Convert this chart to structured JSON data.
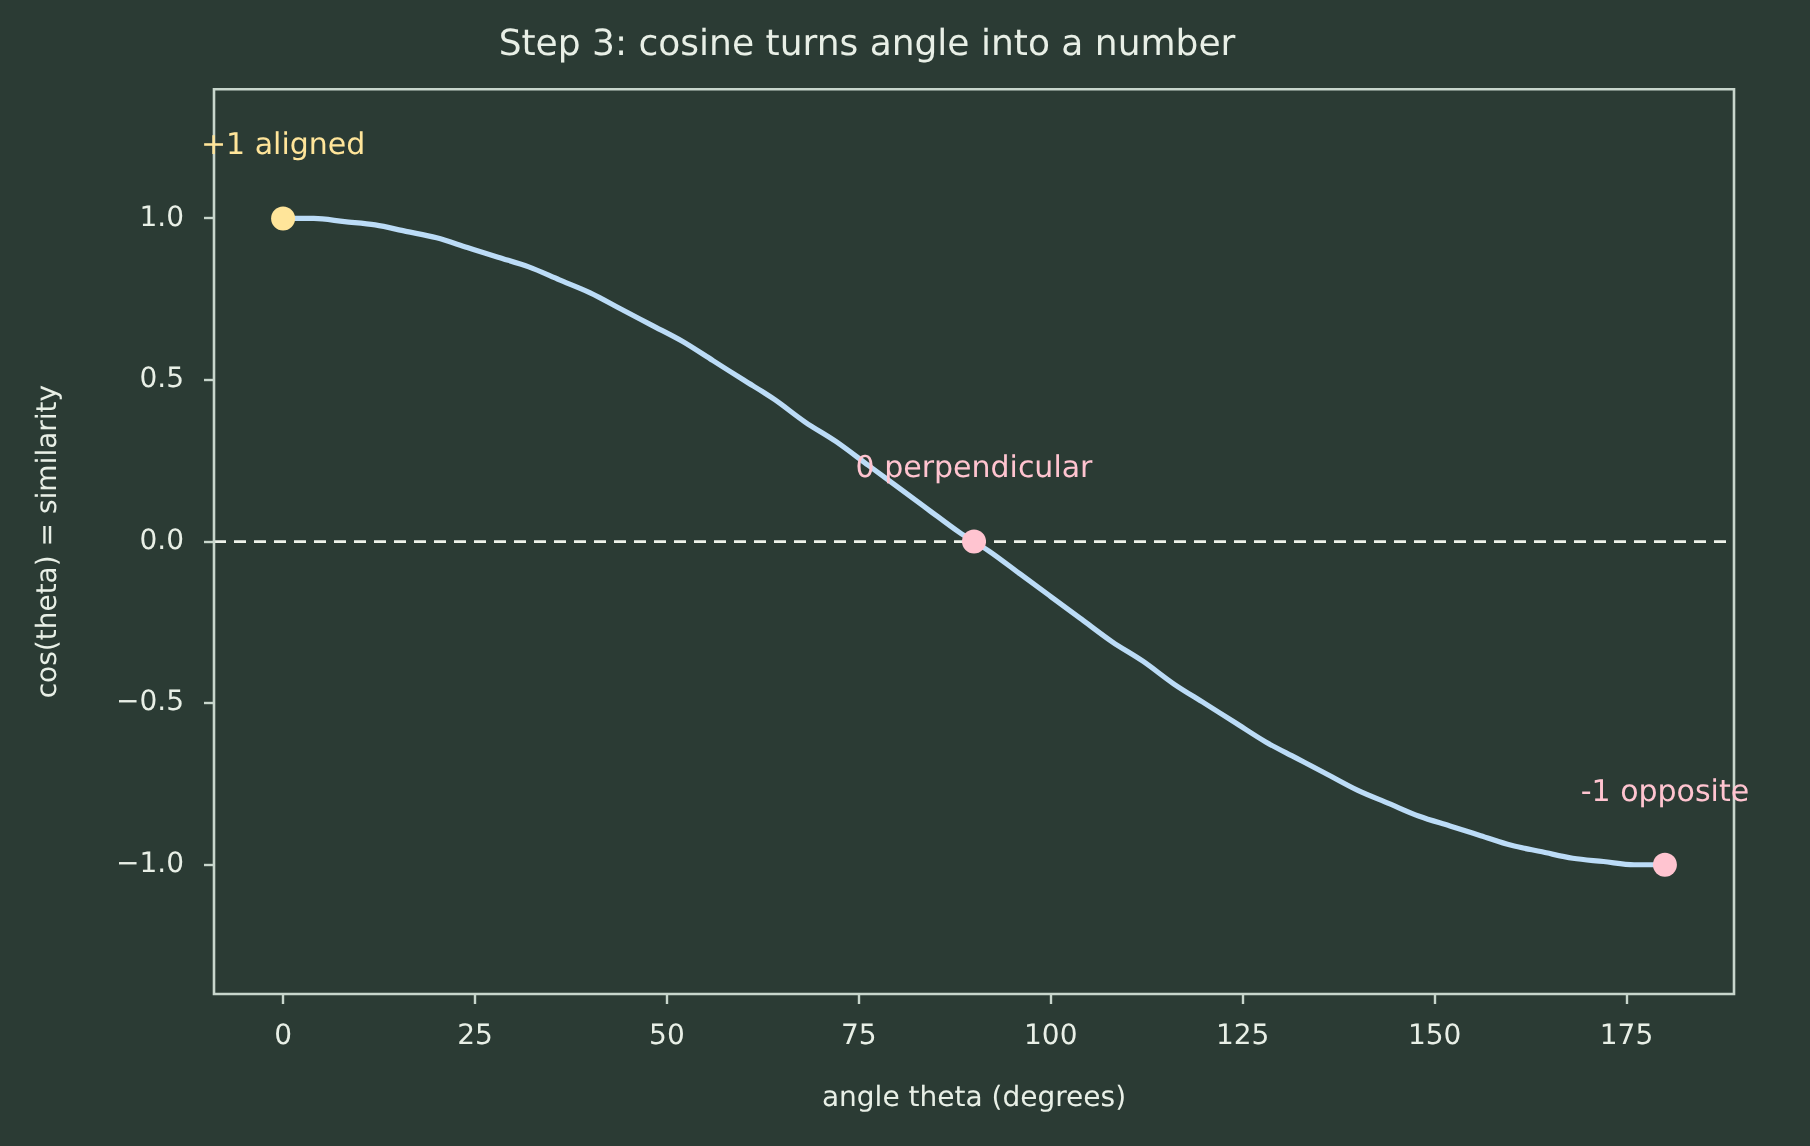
{
  "chart_data": {
    "type": "line",
    "title": "Step 3: cosine turns angle into a number",
    "xlabel": "angle theta (degrees)",
    "ylabel": "cos(theta) = similarity",
    "xlim": [
      -9,
      189
    ],
    "ylim": [
      -1.4,
      1.4
    ],
    "xticks": [
      0,
      25,
      50,
      75,
      100,
      125,
      150,
      175
    ],
    "yticks": [
      {
        "value": -1,
        "label": "−1.0"
      },
      {
        "value": -0.5,
        "label": "−0.5"
      },
      {
        "value": 0,
        "label": "0.0"
      },
      {
        "value": 0.5,
        "label": "0.5"
      },
      {
        "value": 1,
        "label": "1.0"
      }
    ],
    "series": [
      {
        "type": "line",
        "color": "#bcdcf7",
        "marker": "none",
        "line_style": "solid",
        "x": [
          0,
          4,
          8,
          12,
          16,
          20,
          24,
          28,
          32,
          36,
          40,
          44,
          48,
          52,
          56,
          60,
          64,
          68,
          72,
          76,
          80,
          84,
          88,
          92,
          96,
          100,
          104,
          108,
          112,
          116,
          120,
          124,
          128,
          132,
          136,
          140,
          144,
          148,
          152,
          156,
          160,
          164,
          168,
          172,
          176,
          180
        ],
        "values": [
          1.0,
          1.0,
          0.99,
          0.98,
          0.96,
          0.94,
          0.91,
          0.88,
          0.85,
          0.81,
          0.77,
          0.72,
          0.67,
          0.62,
          0.56,
          0.5,
          0.44,
          0.37,
          0.31,
          0.24,
          0.17,
          0.1,
          0.03,
          -0.03,
          -0.1,
          -0.17,
          -0.24,
          -0.31,
          -0.37,
          -0.44,
          -0.5,
          -0.56,
          -0.62,
          -0.67,
          -0.72,
          -0.77,
          -0.81,
          -0.85,
          -0.88,
          -0.91,
          -0.94,
          -0.96,
          -0.98,
          -0.99,
          -1.0,
          -1.0
        ]
      },
      {
        "type": "scatter",
        "marker": "circle",
        "x": [
          0,
          90,
          180
        ],
        "values": [
          1,
          0,
          -1
        ],
        "colors": [
          "#ffe59a",
          "#ffc4d0",
          "#ffc4d0"
        ]
      }
    ],
    "ref_lines": [
      {
        "axis": "y",
        "value": 0,
        "color": "#eef2ea",
        "line_style": "dashed"
      }
    ],
    "annotations": [
      {
        "text": "+1 aligned",
        "x": 0,
        "y": 1
      },
      {
        "text": "0 perpendicular",
        "x": 90,
        "y": 0
      },
      {
        "text": "-1 opposite",
        "x": 180,
        "y": -1
      }
    ]
  }
}
